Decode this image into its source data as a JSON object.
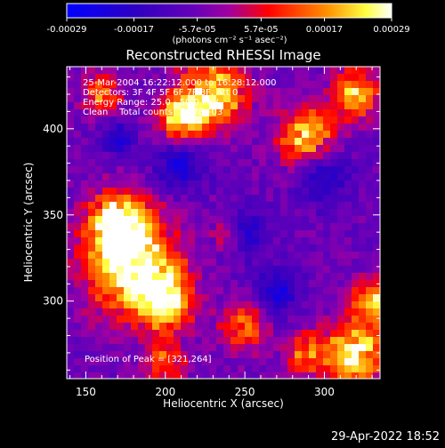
{
  "colorbar": {
    "tick_labels": [
      "-0.00029",
      "-0.00017",
      "-5.7e-05",
      "5.7e-05",
      "0.00017",
      "0.00029"
    ],
    "tick_values": [
      -0.00029,
      -0.00017,
      -5.7e-05,
      5.7e-05,
      0.00017,
      0.00029
    ],
    "range": [
      -0.00029,
      0.00029
    ],
    "unit_label": "(photons cm⁻² s⁻¹ asec⁻²)"
  },
  "annotations": {
    "line1": "25-Mar-2004 16:22:12.000 to 16:28:12.000",
    "line2": "Detectors: 3F 4F 5F 6F 7F 8F, Att 0",
    "line3": "Energy Range: 25.0 - 50.0 keV",
    "line4": "Clean    Total counts: 7.67E+03",
    "peak": "Position of Peak = [321,264]"
  },
  "footer": {
    "timestamp": "29-Apr-2022 18:52"
  },
  "chart_data": {
    "type": "heatmap",
    "title": "Reconstructed RHESSI Image",
    "xlabel": "Heliocentric X (arcsec)",
    "ylabel": "Heliocentric Y (arcsec)",
    "xlim": [
      138,
      335
    ],
    "ylim": [
      255,
      436
    ],
    "xticks": [
      150,
      200,
      250,
      300
    ],
    "yticks": [
      300,
      350,
      400
    ],
    "colormap": [
      "#0000ff",
      "#4b0082",
      "#8000c0",
      "#a000ff",
      "#ff0000",
      "#ff8000",
      "#ffff00",
      "#ffffff"
    ],
    "peak_position": [
      321,
      264
    ],
    "grid": false,
    "legend": "colorbar top"
  }
}
